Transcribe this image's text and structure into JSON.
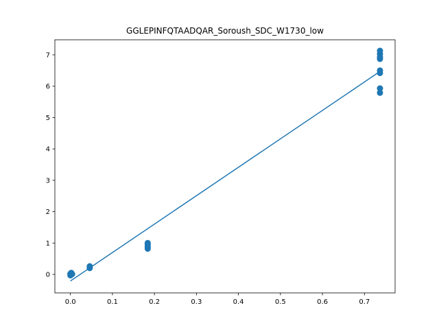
{
  "chart_data": {
    "type": "scatter",
    "title": "GGLEPINFQTAADQAR_Soroush_SDC_W1730_low",
    "xlabel": "",
    "ylabel": "",
    "xlim": [
      -0.037,
      0.773
    ],
    "ylim": [
      -0.59,
      7.48
    ],
    "x_ticks": [
      0.0,
      0.1,
      0.2,
      0.3,
      0.4,
      0.5,
      0.6,
      0.7
    ],
    "x_tick_labels": [
      "0.0",
      "0.1",
      "0.2",
      "0.3",
      "0.4",
      "0.5",
      "0.6",
      "0.7"
    ],
    "y_ticks": [
      0,
      1,
      2,
      3,
      4,
      5,
      6,
      7
    ],
    "y_tick_labels": [
      "0",
      "1",
      "2",
      "3",
      "4",
      "5",
      "6",
      "7"
    ],
    "grid": false,
    "legend": "none",
    "colors": {
      "points": "#1f77b4",
      "fit_line": "#1f77b4"
    },
    "points": [
      {
        "x": 0.0,
        "y": 0.0
      },
      {
        "x": 0.0,
        "y": 0.02
      },
      {
        "x": 0.0,
        "y": -0.03
      },
      {
        "x": 0.002,
        "y": 0.05
      },
      {
        "x": 0.004,
        "y": 0.01
      },
      {
        "x": 0.046,
        "y": 0.2
      },
      {
        "x": 0.046,
        "y": 0.23
      },
      {
        "x": 0.046,
        "y": 0.26
      },
      {
        "x": 0.184,
        "y": 0.82
      },
      {
        "x": 0.184,
        "y": 0.87
      },
      {
        "x": 0.184,
        "y": 0.92
      },
      {
        "x": 0.184,
        "y": 0.97
      },
      {
        "x": 0.184,
        "y": 1.0
      },
      {
        "x": 0.737,
        "y": 5.79
      },
      {
        "x": 0.737,
        "y": 5.93
      },
      {
        "x": 0.737,
        "y": 6.42
      },
      {
        "x": 0.737,
        "y": 6.5
      },
      {
        "x": 0.737,
        "y": 6.87
      },
      {
        "x": 0.737,
        "y": 6.93
      },
      {
        "x": 0.737,
        "y": 7.03
      },
      {
        "x": 0.737,
        "y": 7.13
      }
    ],
    "fit_line": {
      "x": [
        0.0,
        0.737
      ],
      "y": [
        -0.21,
        6.47
      ]
    }
  }
}
